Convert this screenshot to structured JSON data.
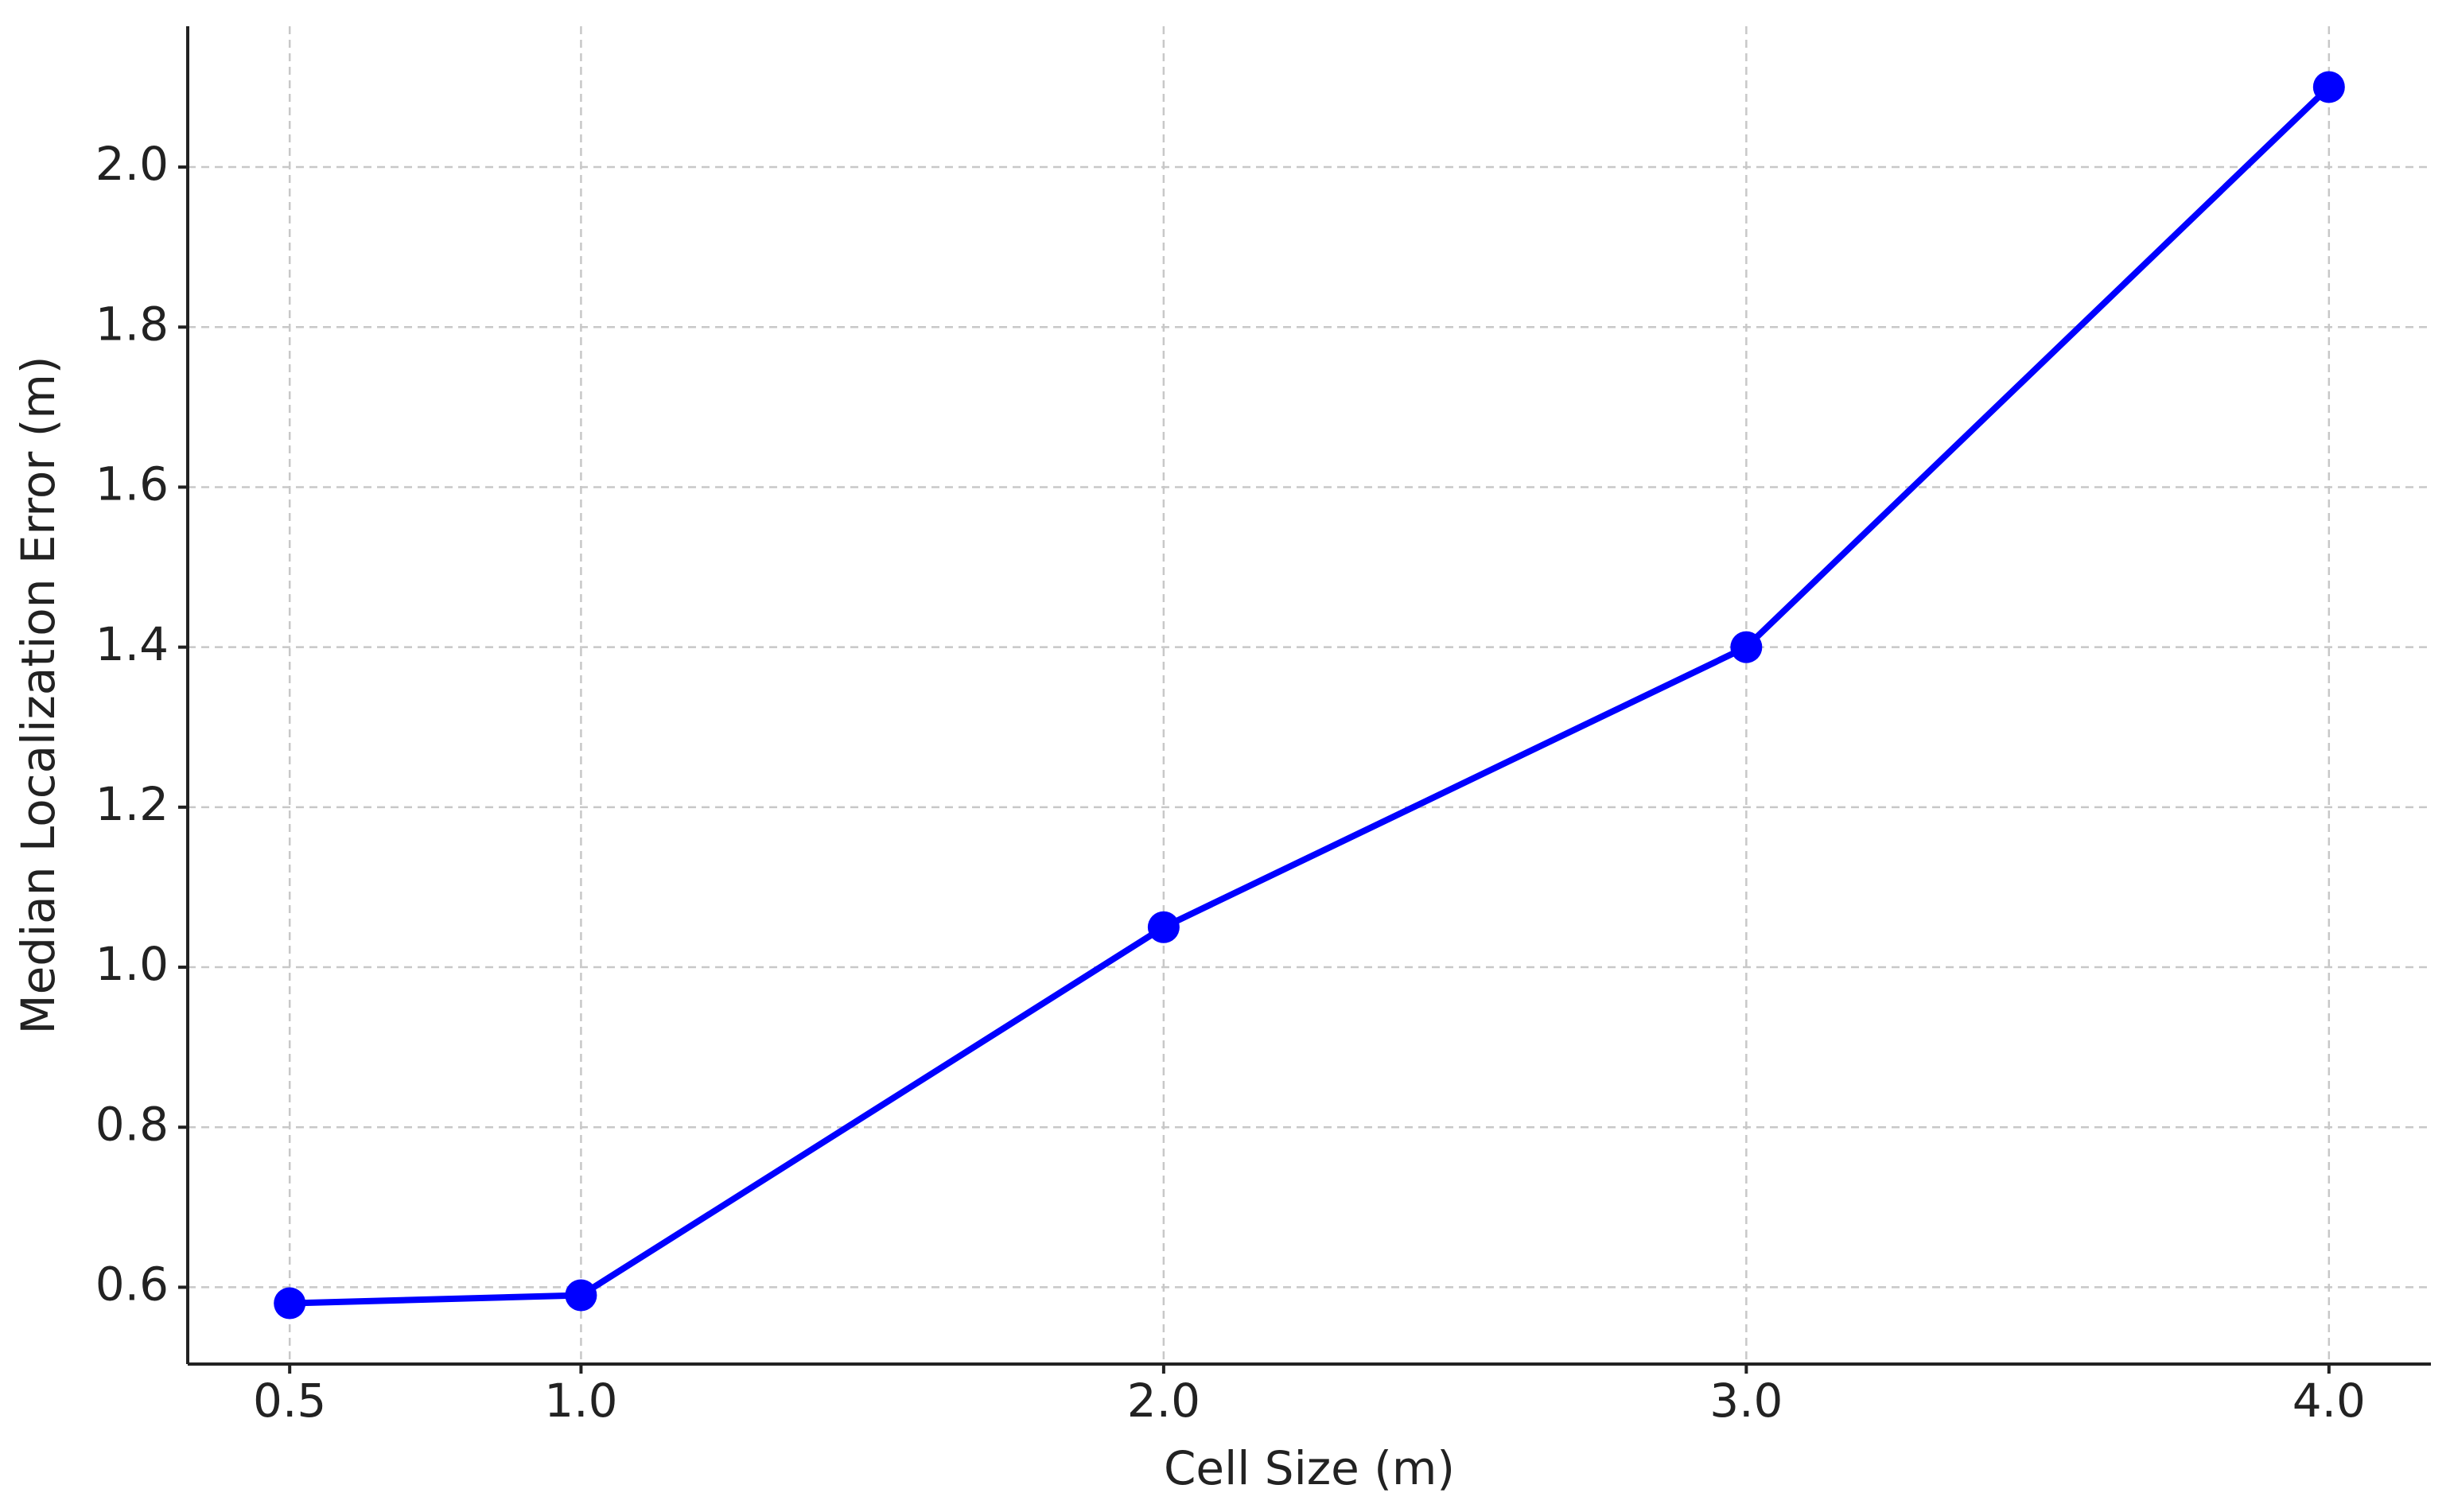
{
  "chart_data": {
    "type": "line",
    "x_label": "Cell Size (m)",
    "y_label": "Median Localization Error (m)",
    "x": [
      0.5,
      1.0,
      2.0,
      3.0,
      4.0
    ],
    "series": [
      {
        "color": "#0000ff",
        "values": [
          0.58,
          0.59,
          1.05,
          1.4,
          2.1
        ]
      }
    ],
    "xlim": [
      0.325,
      4.175
    ],
    "xticks": [
      0.5,
      {
        "value": 1,
        "label": "1.0"
      },
      {
        "value": 2,
        "label": "2.0"
      },
      {
        "value": 3,
        "label": "3.0"
      },
      {
        "value": 4,
        "label": "4.0"
      }
    ],
    "ylim": [
      0.504,
      2.176
    ],
    "yticks": [
      0.6,
      0.8,
      {
        "value": 1,
        "label": "1.0"
      },
      1.2,
      1.4,
      1.6,
      1.8,
      {
        "value": 2,
        "label": "2.0"
      }
    ],
    "grid": true
  }
}
